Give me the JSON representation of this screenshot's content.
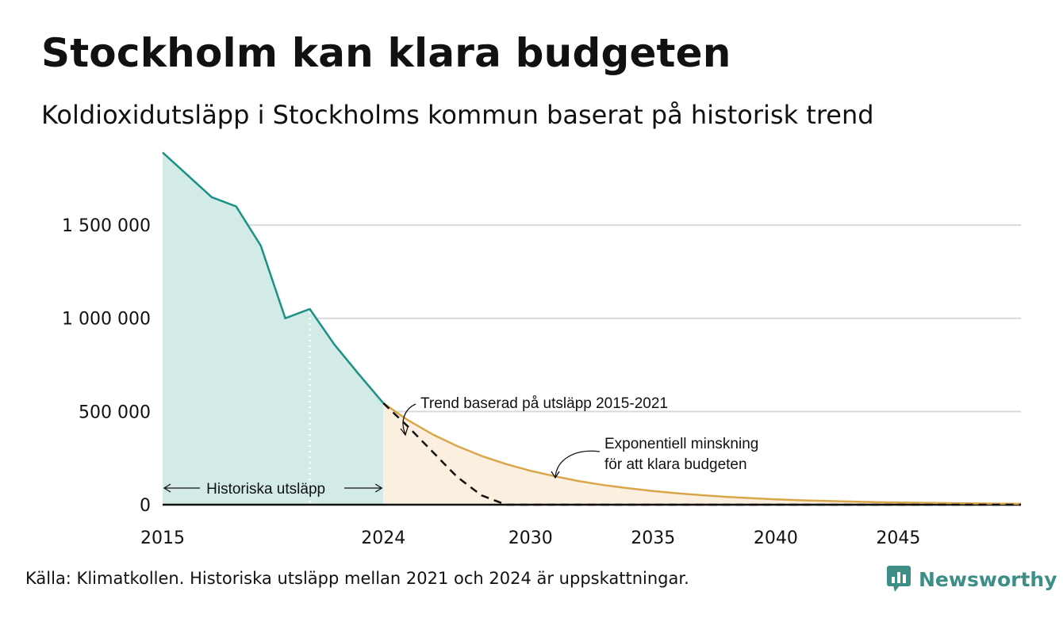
{
  "title": "Stockholm kan klara budgeten",
  "subtitle": "Koldioxidutsläpp i Stockholms kommun baserat på historisk trend",
  "source": "Källa: Klimatkollen. Historiska utsläpp mellan 2021 och 2024 är uppskattningar.",
  "logo": {
    "text": "Newsworthy",
    "icon": "newsworthy-logo-icon",
    "color": "#3d8e86"
  },
  "colors": {
    "historical_line": "#1a9185",
    "historical_fill": "#d3ebe7",
    "budget_line": "#d9a64a",
    "budget_fill": "#fbefdf",
    "trend_line": "#111111",
    "grid": "#d9d9d9"
  },
  "chart_data": {
    "type": "area",
    "xlim": [
      2015,
      2050
    ],
    "ylim": [
      0,
      1900000
    ],
    "x_ticks": [
      2015,
      2024,
      2030,
      2035,
      2040,
      2045
    ],
    "x_tick_labels": [
      "2015",
      "2024",
      "2030",
      "2035",
      "2040",
      "2045"
    ],
    "y_ticks": [
      0,
      500000,
      1000000,
      1500000
    ],
    "y_tick_labels": [
      "0",
      "500 000",
      "1 000 000",
      "1 500 000"
    ],
    "grid": "horizontal",
    "estimate_start_year": 2021,
    "series": [
      {
        "name": "Historiska utsläpp",
        "style": "area-line",
        "x": [
          2015,
          2016,
          2017,
          2018,
          2019,
          2020,
          2021,
          2022,
          2023,
          2024
        ],
        "y": [
          1890000,
          1770000,
          1650000,
          1600000,
          1390000,
          1000000,
          1050000,
          860000,
          700000,
          545000
        ]
      },
      {
        "name": "Exponentiell minskning för att klara budgeten",
        "style": "area-line",
        "x": [
          2024,
          2025,
          2026,
          2027,
          2028,
          2029,
          2030,
          2031,
          2032,
          2033,
          2034,
          2035,
          2036,
          2037,
          2038,
          2039,
          2040,
          2041,
          2042,
          2043,
          2044,
          2045,
          2046,
          2047,
          2048,
          2049,
          2050
        ],
        "y": [
          545000,
          454000,
          378000,
          315000,
          262000,
          218000,
          182000,
          152000,
          126000,
          105000,
          88000,
          73000,
          61000,
          51000,
          42000,
          35000,
          29000,
          24000,
          20000,
          17000,
          14000,
          12000,
          10000,
          8300,
          6900,
          5800,
          4800
        ]
      },
      {
        "name": "Trend baserad på utsläpp 2015-2021",
        "style": "dashed",
        "x": [
          2024,
          2025,
          2026,
          2027,
          2028,
          2029,
          2030,
          2035,
          2040,
          2045,
          2050
        ],
        "y": [
          545000,
          420000,
          285000,
          150000,
          50000,
          0,
          0,
          0,
          0,
          0,
          0
        ]
      }
    ],
    "annotations": [
      {
        "id": "historical",
        "text": "Historiska utsläpp"
      },
      {
        "id": "trend",
        "text": "Trend baserad på utsläpp 2015-2021"
      },
      {
        "id": "budget",
        "lines": [
          "Exponentiell minskning",
          "för att klara budgeten"
        ]
      }
    ]
  }
}
